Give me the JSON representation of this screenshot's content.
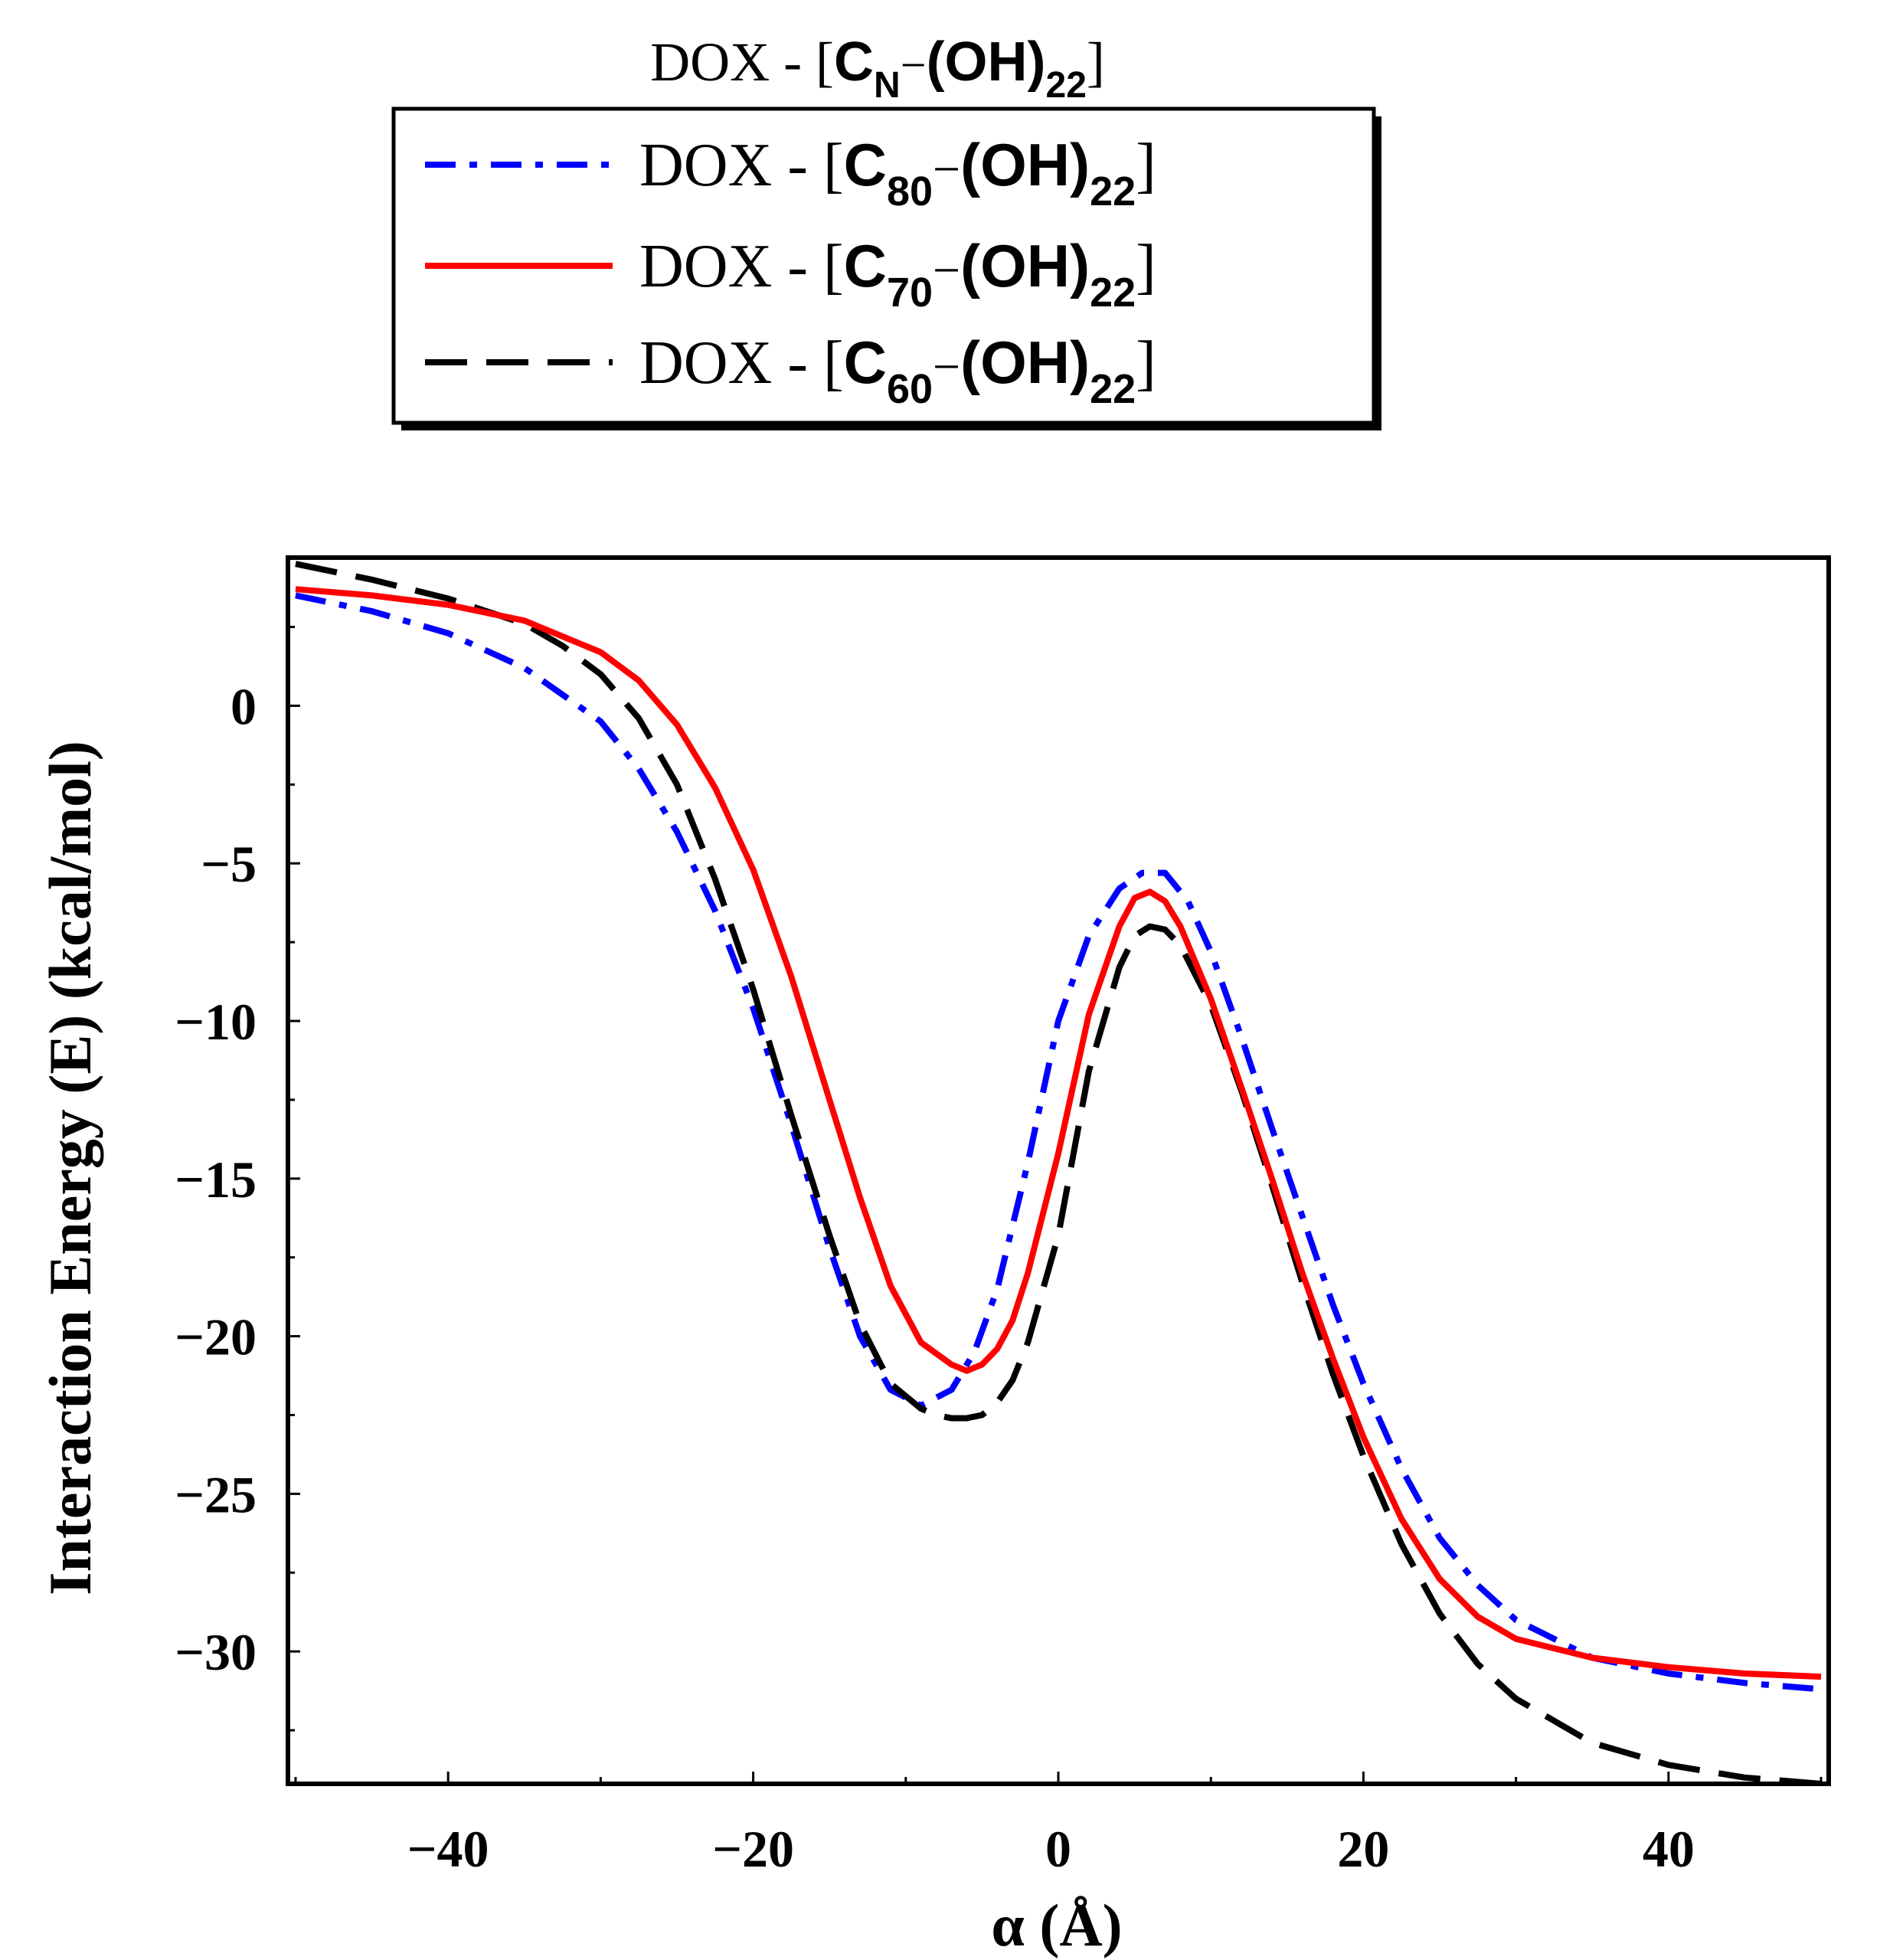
{
  "chart_data": {
    "type": "line",
    "title": {
      "prefix": "DOX - [",
      "c": "C",
      "c_sub": "N",
      "dash": "−",
      "oh": "(OH)",
      "oh_sub": "22",
      "close": "]"
    },
    "xlabel": "α (Å)",
    "ylabel": "Interaction Energy (E) (kcal/mol)",
    "xlim": [
      -50.5,
      50.5
    ],
    "ylim": [
      -34.2,
      4.7
    ],
    "xticks": [
      {
        "value": -40,
        "label": "−40"
      },
      {
        "value": -20,
        "label": "−20"
      },
      {
        "value": 0,
        "label": "0"
      },
      {
        "value": 20,
        "label": "20"
      },
      {
        "value": 40,
        "label": "40"
      }
    ],
    "yticks": [
      {
        "value": 0,
        "label": "0"
      },
      {
        "value": -5,
        "label": "−5"
      },
      {
        "value": -10,
        "label": "−10"
      },
      {
        "value": -15,
        "label": "−15"
      },
      {
        "value": -20,
        "label": "−20"
      },
      {
        "value": -25,
        "label": "−25"
      },
      {
        "value": -30,
        "label": "−30"
      }
    ],
    "legend_position": "top-center",
    "series": [
      {
        "name": "DOX - [C80 − (OH)22]",
        "legend": {
          "prefix": "DOX - [",
          "c": "C",
          "c_sub": "80",
          "dash": "−",
          "oh": "(OH)",
          "oh_sub": "22",
          "close": "]"
        },
        "color": "#0000ff",
        "dash": "dashdot",
        "x": [
          -50,
          -45,
          -40,
          -35,
          -30,
          -27.5,
          -25,
          -22.5,
          -20,
          -17.5,
          -15,
          -13,
          -11,
          -9,
          -7,
          -5.5,
          -4,
          -2,
          0,
          2,
          4,
          5.5,
          7,
          8.5,
          10,
          12,
          14,
          16,
          18,
          20,
          22.5,
          25,
          27.5,
          30,
          35,
          40,
          45,
          50
        ],
        "y": [
          3.5,
          3.0,
          2.3,
          1.2,
          -0.5,
          -2.0,
          -4.0,
          -6.5,
          -9.6,
          -13.3,
          -17.2,
          -20.0,
          -21.7,
          -22.2,
          -21.7,
          -20.5,
          -18.5,
          -14.5,
          -10.0,
          -7.3,
          -5.8,
          -5.3,
          -5.3,
          -6.2,
          -7.8,
          -10.5,
          -13.4,
          -16.2,
          -19.0,
          -21.5,
          -24.2,
          -26.4,
          -27.9,
          -29.0,
          -30.2,
          -30.7,
          -31.0,
          -31.2
        ]
      },
      {
        "name": "DOX - [C70 − (OH)22]",
        "legend": {
          "prefix": "DOX - [",
          "c": "C",
          "c_sub": "70",
          "dash": "−",
          "oh": "(OH)",
          "oh_sub": "22",
          "close": "]"
        },
        "color": "#ff0000",
        "dash": "solid",
        "x": [
          -50,
          -45,
          -40,
          -35,
          -30,
          -27.5,
          -25,
          -22.5,
          -20,
          -17.5,
          -15,
          -13,
          -11,
          -9,
          -7,
          -6,
          -5,
          -4,
          -3,
          -2,
          0,
          2,
          4,
          5,
          6,
          7,
          8,
          10,
          12,
          14,
          16,
          18,
          20,
          22.5,
          25,
          27.5,
          30,
          35,
          40,
          45,
          50
        ],
        "y": [
          3.7,
          3.5,
          3.2,
          2.7,
          1.7,
          0.8,
          -0.6,
          -2.6,
          -5.2,
          -8.6,
          -12.5,
          -15.6,
          -18.4,
          -20.2,
          -20.9,
          -21.1,
          -20.9,
          -20.4,
          -19.5,
          -18.0,
          -14.2,
          -9.8,
          -7.0,
          -6.1,
          -5.9,
          -6.2,
          -7.0,
          -9.3,
          -12.1,
          -15.0,
          -18.0,
          -20.7,
          -23.2,
          -25.8,
          -27.7,
          -28.9,
          -29.6,
          -30.2,
          -30.5,
          -30.7,
          -30.8
        ]
      },
      {
        "name": "DOX - [C60 − (OH)22]",
        "legend": {
          "prefix": "DOX - [",
          "c": "C",
          "c_sub": "60",
          "dash": "−",
          "oh": "(OH)",
          "oh_sub": "22",
          "close": "]"
        },
        "color": "#000000",
        "dash": "dashed",
        "x": [
          -50,
          -45,
          -40,
          -35,
          -32.5,
          -30,
          -27.5,
          -25,
          -22.5,
          -20,
          -17.5,
          -15,
          -13,
          -11,
          -9,
          -8,
          -7,
          -6,
          -5,
          -4,
          -3,
          -2,
          0,
          2,
          4,
          5,
          6,
          7,
          8,
          10,
          12,
          14,
          16,
          18,
          20,
          22.5,
          25,
          27.5,
          30,
          35,
          40,
          45,
          50
        ],
        "y": [
          4.5,
          4.0,
          3.4,
          2.6,
          1.9,
          1.0,
          -0.4,
          -2.5,
          -5.5,
          -9.0,
          -13.0,
          -16.8,
          -19.6,
          -21.5,
          -22.3,
          -22.5,
          -22.6,
          -22.6,
          -22.5,
          -22.1,
          -21.4,
          -20.2,
          -16.8,
          -11.6,
          -8.3,
          -7.3,
          -7.0,
          -7.1,
          -7.6,
          -9.5,
          -12.2,
          -15.2,
          -18.3,
          -21.2,
          -23.8,
          -26.6,
          -28.8,
          -30.4,
          -31.5,
          -32.9,
          -33.6,
          -34.0,
          -34.2
        ]
      }
    ]
  }
}
